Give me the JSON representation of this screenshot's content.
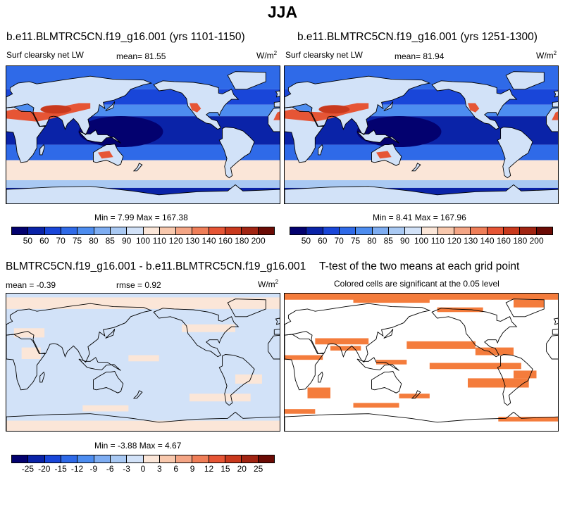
{
  "title": "JJA",
  "panels": {
    "p1": {
      "title": "b.e11.BLMTRC5CN.f19_g16.001 (yrs 1101-1150)",
      "variable": "Surf clearsky net LW",
      "mean": "mean=  81.55",
      "units": "W/m",
      "minmax": "Min =   7.99 Max = 167.38"
    },
    "p2": {
      "title": "b.e11.BLMTRC5CN.f19_g16.001 (yrs 1251-1300)",
      "variable": "Surf clearsky net LW",
      "mean": "mean=  81.94",
      "units": "W/m",
      "minmax": "Min =   8.41 Max = 167.96"
    },
    "p3": {
      "title": "BLMTRC5CN.f19_g16.001 - b.e11.BLMTRC5CN.f19_g16.001",
      "mean": "mean =  -0.39",
      "rmse": "rmse =  0.92",
      "units": "W/m",
      "minmax": "Min =  -3.88 Max =   4.67"
    },
    "p4": {
      "title": "T-test of the two means at each grid point",
      "subtitle": "Colored cells are significant at the 0.05 level"
    }
  },
  "chart_data": [
    {
      "type": "heatmap",
      "title": "b.e11.BLMTRC5CN.f19_g16.001 (yrs 1101-1150)",
      "variable": "Surf clearsky net LW",
      "units": "W/m2",
      "mean": 81.55,
      "min": 7.99,
      "max": 167.38,
      "colorbar_levels": [
        "50",
        "60",
        "70",
        "75",
        "80",
        "85",
        "90",
        "100",
        "110",
        "120",
        "130",
        "140",
        "160",
        "180",
        "200"
      ],
      "colorbar_colors": [
        "#03016f",
        "#0a23a8",
        "#1946d9",
        "#2f6ae8",
        "#4d8df0",
        "#7eadf2",
        "#a9c9f3",
        "#d2e2f8",
        "#fbe6d8",
        "#f8c8ad",
        "#f4a585",
        "#ef7e58",
        "#e65535",
        "#c9391d",
        "#a12412",
        "#6b0b05"
      ]
    },
    {
      "type": "heatmap",
      "title": "b.e11.BLMTRC5CN.f19_g16.001 (yrs 1251-1300)",
      "variable": "Surf clearsky net LW",
      "units": "W/m2",
      "mean": 81.94,
      "min": 8.41,
      "max": 167.96,
      "colorbar_levels": [
        "50",
        "60",
        "70",
        "75",
        "80",
        "85",
        "90",
        "100",
        "110",
        "120",
        "130",
        "140",
        "160",
        "180",
        "200"
      ],
      "colorbar_colors": [
        "#03016f",
        "#0a23a8",
        "#1946d9",
        "#2f6ae8",
        "#4d8df0",
        "#7eadf2",
        "#a9c9f3",
        "#d2e2f8",
        "#fbe6d8",
        "#f8c8ad",
        "#f4a585",
        "#ef7e58",
        "#e65535",
        "#c9391d",
        "#a12412",
        "#6b0b05"
      ]
    },
    {
      "type": "heatmap",
      "title": "BLMTRC5CN.f19_g16.001 - b.e11.BLMTRC5CN.f19_g16.001",
      "units": "W/m2",
      "mean": -0.39,
      "rmse": 0.92,
      "min": -3.88,
      "max": 4.67,
      "colorbar_levels": [
        "-25",
        "-20",
        "-15",
        "-12",
        "-9",
        "-6",
        "-3",
        "0",
        "3",
        "6",
        "9",
        "12",
        "15",
        "20",
        "25"
      ],
      "colorbar_colors": [
        "#03016f",
        "#0a23a8",
        "#1946d9",
        "#2f6ae8",
        "#4d8df0",
        "#7eadf2",
        "#a9c9f3",
        "#d2e2f8",
        "#fbe6d8",
        "#f8c8ad",
        "#f4a585",
        "#ef7e58",
        "#e65535",
        "#c9391d",
        "#a12412",
        "#6b0b05"
      ]
    },
    {
      "type": "heatmap",
      "title": "T-test of the two means at each grid point",
      "subtitle": "Colored cells are significant at the 0.05 level",
      "significant_color": "#f47c3c"
    }
  ],
  "icons": {
    "coastline": "world-coastline-map"
  }
}
